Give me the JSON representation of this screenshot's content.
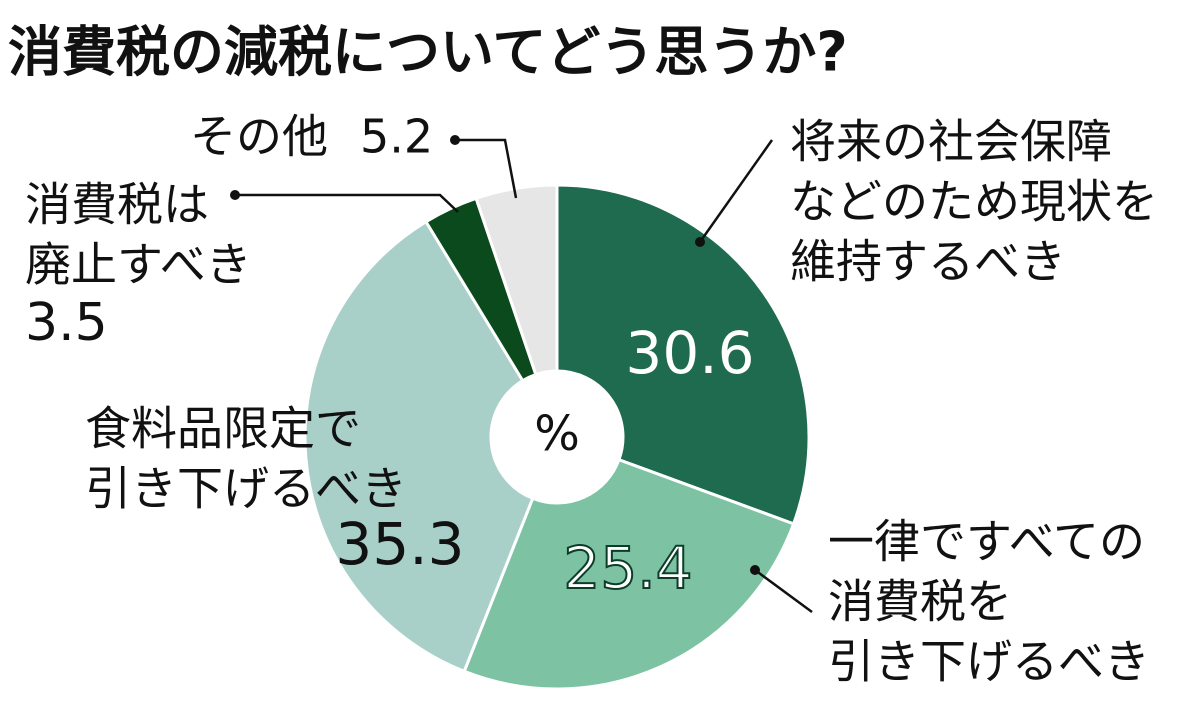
{
  "chart_data": {
    "type": "donut",
    "title": "消費税の減税についてどう思うか?",
    "center_label": "%",
    "categories": [
      [
        "将来の社会保障",
        "などのため現状を",
        "維持するべき"
      ],
      [
        "一律ですべての",
        "消費税を",
        "引き下げるべき"
      ],
      [
        "食料品限定で",
        "引き下げるべき"
      ],
      [
        "消費税は",
        "廃止すべき"
      ],
      [
        "その他"
      ]
    ],
    "values": [
      30.6,
      25.4,
      35.3,
      3.5,
      5.2
    ],
    "colors": [
      "#1f6b4f",
      "#7cc2a3",
      "#a8d0c8",
      "#0b4a1c",
      "#e6e6e6"
    ]
  }
}
